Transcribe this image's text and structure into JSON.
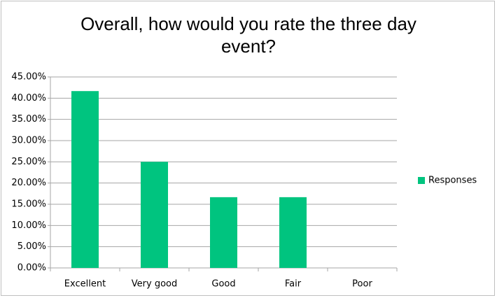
{
  "chart_data": {
    "type": "bar",
    "title": "Overall, how would you rate the three day event?",
    "categories": [
      "Excellent",
      "Very good",
      "Good",
      "Fair",
      "Poor"
    ],
    "series": [
      {
        "name": "Responses",
        "color": "#00c47f",
        "values": [
          41.67,
          25,
          16.67,
          16.67,
          0
        ]
      }
    ],
    "ylim": [
      0,
      45
    ],
    "yticks": [
      {
        "value": 0,
        "label": "0.00%"
      },
      {
        "value": 5,
        "label": "5.00%"
      },
      {
        "value": 10,
        "label": "10.00%"
      },
      {
        "value": 15,
        "label": "15.00%"
      },
      {
        "value": 20,
        "label": "20.00%"
      },
      {
        "value": 25,
        "label": "25.00%"
      },
      {
        "value": 30,
        "label": "30.00%"
      },
      {
        "value": 35,
        "label": "35.00%"
      },
      {
        "value": 40,
        "label": "40.00%"
      },
      {
        "value": 45,
        "label": "45.00%"
      }
    ],
    "grid": true,
    "legend": "right"
  }
}
